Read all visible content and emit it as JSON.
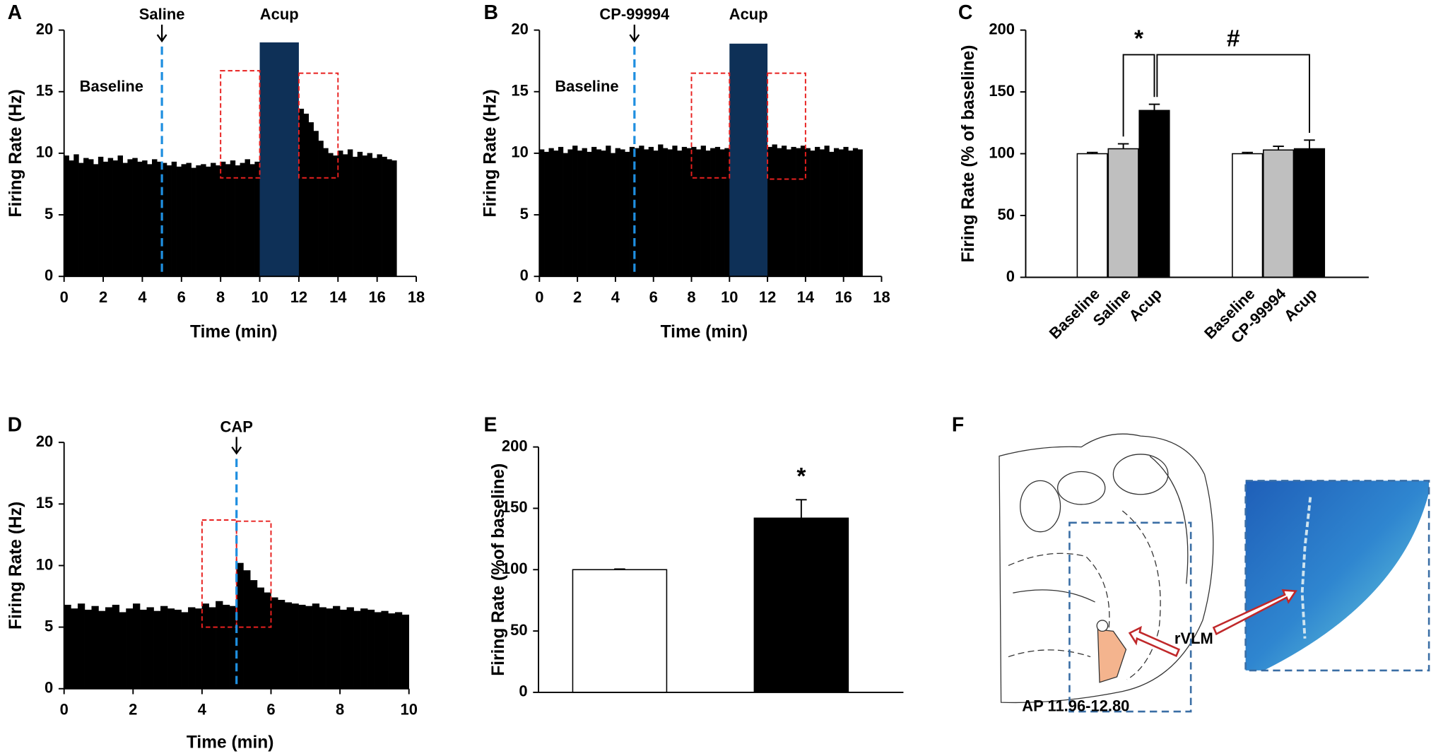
{
  "chart_data": [
    {
      "type": "histogram",
      "panel_label": "A",
      "x_label": "Time (min)",
      "y_label": "Firing Rate (Hz)",
      "baseline_label": "Baseline",
      "color": "#000000",
      "bins": [
        0,
        0.25,
        0.5,
        0.75,
        1,
        1.25,
        1.5,
        1.75,
        2,
        2.25,
        2.5,
        2.75,
        3,
        3.25,
        3.5,
        3.75,
        4,
        4.25,
        4.5,
        4.75,
        5,
        5.25,
        5.5,
        5.75,
        6,
        6.25,
        6.5,
        6.75,
        7,
        7.25,
        7.5,
        7.75,
        8,
        8.25,
        8.5,
        8.75,
        9,
        9.25,
        9.5,
        9.75,
        10,
        10.25,
        10.5,
        10.75,
        11,
        11.25,
        11.5,
        11.75,
        12,
        12.25,
        12.5,
        12.75,
        13,
        13.25,
        13.5,
        13.75,
        14,
        14.25,
        14.5,
        14.75,
        15,
        15.25,
        15.5,
        15.75,
        16,
        16.25,
        16.5,
        16.75,
        17
      ],
      "values": [
        9.8,
        9.4,
        9.9,
        9.2,
        9.6,
        9.5,
        9.1,
        9.7,
        9.3,
        9.6,
        9.4,
        9.8,
        9.2,
        9.5,
        9.6,
        9.3,
        9.4,
        9.1,
        9.5,
        9.3,
        9.2,
        9.0,
        9.3,
        8.9,
        9.1,
        9.2,
        8.8,
        9.0,
        9.1,
        8.9,
        9.2,
        9.0,
        9.3,
        9.1,
        9.4,
        9.0,
        9.2,
        9.5,
        9.1,
        9.3,
        9.6,
        10.2,
        10.8,
        11.4,
        11.9,
        12.3,
        12.6,
        12.8,
        13.6,
        13.2,
        12.5,
        11.8,
        11.0,
        10.4,
        10.0,
        9.8,
        10.2,
        9.9,
        10.3,
        9.7,
        10.1,
        9.8,
        10.0,
        9.6,
        9.9,
        9.7,
        9.5,
        9.4
      ],
      "xlim": [
        0,
        18
      ],
      "ylim": [
        0,
        20
      ],
      "xticks": [
        0,
        2,
        4,
        6,
        8,
        10,
        12,
        14,
        16,
        18
      ],
      "yticks": [
        0,
        5,
        10,
        15,
        20
      ],
      "marker": {
        "label": "Saline",
        "x": 5,
        "color": "#1f8fe0"
      },
      "stimulus": {
        "label": "Acup",
        "x": [
          10,
          12
        ],
        "height": 19,
        "color": "#0e3057"
      },
      "window_color": "#e8201f",
      "windows": [
        {
          "x": [
            8,
            10
          ],
          "y": [
            8,
            16.7
          ]
        },
        {
          "x": [
            12,
            14
          ],
          "y": [
            8,
            16.5
          ]
        }
      ]
    },
    {
      "type": "histogram",
      "panel_label": "B",
      "x_label": "Time (min)",
      "y_label": "Firing Rate (Hz)",
      "baseline_label": "Baseline",
      "color": "#000000",
      "bins": [
        0,
        0.25,
        0.5,
        0.75,
        1,
        1.25,
        1.5,
        1.75,
        2,
        2.25,
        2.5,
        2.75,
        3,
        3.25,
        3.5,
        3.75,
        4,
        4.25,
        4.5,
        4.75,
        5,
        5.25,
        5.5,
        5.75,
        6,
        6.25,
        6.5,
        6.75,
        7,
        7.25,
        7.5,
        7.75,
        8,
        8.25,
        8.5,
        8.75,
        9,
        9.25,
        9.5,
        9.75,
        10,
        10.25,
        10.5,
        10.75,
        11,
        11.25,
        11.5,
        11.75,
        12,
        12.25,
        12.5,
        12.75,
        13,
        13.25,
        13.5,
        13.75,
        14,
        14.25,
        14.5,
        14.75,
        15,
        15.25,
        15.5,
        15.75,
        16,
        16.25,
        16.5,
        16.75,
        17
      ],
      "values": [
        10.3,
        10.1,
        10.4,
        10.2,
        10.5,
        10.0,
        10.3,
        10.6,
        10.2,
        10.4,
        10.1,
        10.5,
        10.3,
        10.2,
        10.6,
        10.0,
        10.4,
        10.3,
        10.1,
        10.5,
        10.4,
        10.6,
        10.3,
        10.5,
        10.2,
        10.7,
        10.4,
        10.3,
        10.6,
        10.2,
        10.5,
        10.4,
        10.5,
        10.3,
        10.6,
        10.2,
        10.4,
        10.5,
        10.3,
        10.4,
        10.4,
        10.5,
        10.3,
        10.6,
        10.4,
        10.5,
        10.3,
        10.4,
        10.5,
        10.7,
        10.4,
        10.6,
        10.3,
        10.5,
        10.4,
        10.6,
        10.4,
        10.2,
        10.5,
        10.3,
        10.6,
        10.1,
        10.4,
        10.3,
        10.5,
        10.2,
        10.4,
        10.3
      ],
      "xlim": [
        0,
        18
      ],
      "ylim": [
        0,
        20
      ],
      "xticks": [
        0,
        2,
        4,
        6,
        8,
        10,
        12,
        14,
        16,
        18
      ],
      "yticks": [
        0,
        5,
        10,
        15,
        20
      ],
      "marker": {
        "label": "CP-99994",
        "x": 5,
        "color": "#1f8fe0"
      },
      "stimulus": {
        "label": "Acup",
        "x": [
          10,
          12
        ],
        "height": 18.9,
        "color": "#0e3057"
      },
      "window_color": "#e8201f",
      "windows": [
        {
          "x": [
            8,
            10
          ],
          "y": [
            8,
            16.5
          ]
        },
        {
          "x": [
            12,
            14
          ],
          "y": [
            7.9,
            16.5
          ]
        }
      ]
    },
    {
      "type": "bar",
      "panel_label": "C",
      "y_label": "Firing Rate (% of baseline)",
      "categories": [
        "Baseline",
        "Saline",
        "Acup",
        "Baseline",
        "CP-99994",
        "Acup"
      ],
      "values": [
        100,
        104,
        135,
        100,
        103,
        104
      ],
      "errors": [
        1,
        4,
        5,
        1,
        3,
        7
      ],
      "colors": [
        "#ffffff",
        "#bfbfbf",
        "#000000",
        "#ffffff",
        "#bfbfbf",
        "#000000"
      ],
      "ylim": [
        0,
        200
      ],
      "yticks": [
        0,
        50,
        100,
        150,
        200
      ],
      "annotations": [
        "*",
        "#"
      ]
    },
    {
      "type": "histogram",
      "panel_label": "D",
      "x_label": "Time (min)",
      "y_label": "Firing Rate (Hz)",
      "color": "#000000",
      "bins": [
        0,
        0.2,
        0.4,
        0.6,
        0.8,
        1,
        1.2,
        1.4,
        1.6,
        1.8,
        2,
        2.2,
        2.4,
        2.6,
        2.8,
        3,
        3.2,
        3.4,
        3.6,
        3.8,
        4,
        4.2,
        4.4,
        4.6,
        4.8,
        5,
        5.2,
        5.4,
        5.6,
        5.8,
        6,
        6.2,
        6.4,
        6.6,
        6.8,
        7,
        7.2,
        7.4,
        7.6,
        7.8,
        8,
        8.2,
        8.4,
        8.6,
        8.8,
        9,
        9.2,
        9.4,
        9.6,
        9.8,
        10
      ],
      "values": [
        6.8,
        6.5,
        6.9,
        6.4,
        6.7,
        6.3,
        6.6,
        6.8,
        6.2,
        6.5,
        6.9,
        6.4,
        6.6,
        6.3,
        6.7,
        6.5,
        6.4,
        6.2,
        6.6,
        6.5,
        6.9,
        6.6,
        7.1,
        6.8,
        6.7,
        10.2,
        9.6,
        8.8,
        8.2,
        7.8,
        7.4,
        7.2,
        7.0,
        6.9,
        6.8,
        6.7,
        6.9,
        6.6,
        6.5,
        6.7,
        6.4,
        6.6,
        6.3,
        6.5,
        6.4,
        6.2,
        6.3,
        6.1,
        6.2,
        6.0
      ],
      "xlim": [
        0,
        10
      ],
      "ylim": [
        0,
        20
      ],
      "xticks": [
        0,
        2,
        4,
        6,
        8,
        10
      ],
      "yticks": [
        0,
        5,
        10,
        15,
        20
      ],
      "marker": {
        "label": "CAP",
        "x": 5,
        "color": "#1f8fe0"
      },
      "window_color": "#e8201f",
      "windows": [
        {
          "x": [
            4,
            5
          ],
          "y": [
            5,
            13.7
          ]
        },
        {
          "x": [
            5,
            6
          ],
          "y": [
            5,
            13.6
          ]
        }
      ]
    },
    {
      "type": "bar",
      "panel_label": "E",
      "y_label": "Firing Rate (%of baseline)",
      "categories": [
        null,
        null
      ],
      "values": [
        100,
        142
      ],
      "errors": [
        0.5,
        15
      ],
      "colors": [
        "#ffffff",
        "#000000"
      ],
      "ylim": [
        0,
        200
      ],
      "yticks": [
        0,
        50,
        100,
        150,
        200
      ],
      "annotations": [
        "*"
      ]
    }
  ],
  "panel_f": {
    "panel_label": "F",
    "region_label": "rVLM",
    "coordinates": "AP 11.96-12.80"
  }
}
